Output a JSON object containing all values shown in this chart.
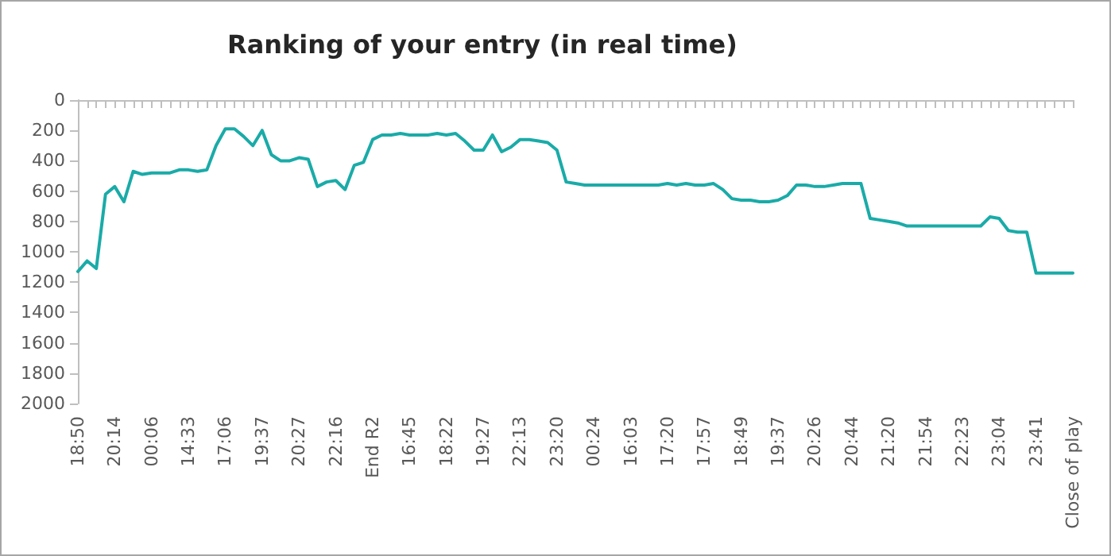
{
  "chart_data": {
    "type": "line",
    "title": "Ranking of your entry (in real time)",
    "categories": [
      "18:50",
      null,
      null,
      null,
      "20:14",
      null,
      null,
      null,
      "00:06",
      null,
      null,
      null,
      "14:33",
      null,
      null,
      null,
      "17:06",
      null,
      null,
      null,
      "19:37",
      null,
      null,
      null,
      "20:27",
      null,
      null,
      null,
      "22:16",
      null,
      null,
      null,
      "End R2",
      null,
      null,
      null,
      "16:45",
      null,
      null,
      null,
      "18:22",
      null,
      null,
      null,
      "19:27",
      null,
      null,
      null,
      "22:13",
      null,
      null,
      null,
      "23:20",
      null,
      null,
      null,
      "00:24",
      null,
      null,
      null,
      "16:03",
      null,
      null,
      null,
      "17:20",
      null,
      null,
      null,
      "17:57",
      null,
      null,
      null,
      "18:49",
      null,
      null,
      null,
      "19:37",
      null,
      null,
      null,
      "20:26",
      null,
      null,
      null,
      "20:44",
      null,
      null,
      null,
      "21:20",
      null,
      null,
      null,
      "21:54",
      null,
      null,
      null,
      "22:23",
      null,
      null,
      null,
      "23:04",
      null,
      null,
      null,
      "23:41",
      null,
      null,
      null,
      "Close of play"
    ],
    "series": [
      {
        "color": "#1aaba8",
        "values": [
          1130,
          1060,
          1110,
          620,
          570,
          670,
          470,
          490,
          480,
          480,
          480,
          460,
          460,
          470,
          460,
          300,
          190,
          190,
          240,
          300,
          200,
          360,
          400,
          400,
          380,
          390,
          570,
          540,
          530,
          590,
          430,
          410,
          260,
          230,
          230,
          220,
          230,
          230,
          230,
          220,
          230,
          220,
          270,
          330,
          330,
          230,
          340,
          310,
          260,
          260,
          270,
          280,
          330,
          540,
          550,
          560,
          560,
          560,
          560,
          560,
          560,
          560,
          560,
          560,
          550,
          560,
          550,
          560,
          560,
          550,
          590,
          650,
          660,
          660,
          670,
          670,
          660,
          630,
          560,
          560,
          570,
          570,
          560,
          550,
          550,
          550,
          780,
          790,
          800,
          810,
          830,
          830,
          830,
          830,
          830,
          830,
          830,
          830,
          830,
          770,
          780,
          860,
          870,
          870,
          1140,
          1140,
          1140,
          1140,
          1140
        ]
      }
    ],
    "ylim": [
      2000,
      0
    ],
    "yticks": [
      0,
      200,
      400,
      600,
      800,
      1000,
      1200,
      1400,
      1600,
      1800,
      2000
    ],
    "grid": false,
    "marker": "none",
    "line_style": "solid"
  }
}
